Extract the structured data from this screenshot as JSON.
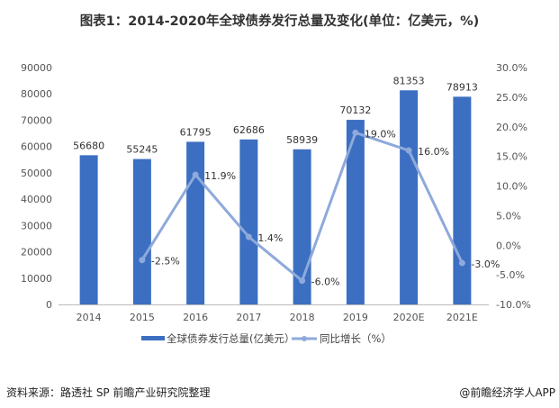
{
  "title": "图表1：2014-2020年全球债券发行总量及变化(单位：亿美元，%)",
  "source": "资料来源：路透社 SP 前瞻产业研究院整理",
  "credit": "@前瞻经济学人APP",
  "chart_data": {
    "type": "bar+line",
    "categories": [
      "2014",
      "2015",
      "2016",
      "2017",
      "2018",
      "2019",
      "2020E",
      "2021E"
    ],
    "series": [
      {
        "name": "全球债券发行总量(亿美元）",
        "type": "bar",
        "axis": "left",
        "color": "#3C6FC1",
        "values": [
          56680,
          55245,
          61795,
          62686,
          58939,
          70132,
          81353,
          78913
        ],
        "labels": [
          "56680",
          "55245",
          "61795",
          "62686",
          "58939",
          "70132",
          "81353",
          "78913"
        ]
      },
      {
        "name": "同比增长（%）",
        "type": "line",
        "axis": "right",
        "color": "#8EA9DB",
        "values": [
          null,
          -2.5,
          11.9,
          1.4,
          -6.0,
          19.0,
          16.0,
          -3.0
        ],
        "labels": [
          "",
          "-2.5%",
          "11.9%",
          "1.4%",
          "-6.0%",
          "19.0%",
          "16.0%",
          "-3.0%"
        ]
      }
    ],
    "y_left": {
      "min": 0,
      "max": 90000,
      "ticks": [
        "0",
        "10000",
        "20000",
        "30000",
        "40000",
        "50000",
        "60000",
        "70000",
        "80000",
        "90000"
      ]
    },
    "y_right": {
      "min": -10,
      "max": 30,
      "ticks": [
        "-10.0%",
        "-5.0%",
        "0.0%",
        "5.0%",
        "10.0%",
        "15.0%",
        "20.0%",
        "25.0%",
        "30.0%"
      ]
    },
    "grid": false,
    "legend": "bottom"
  }
}
